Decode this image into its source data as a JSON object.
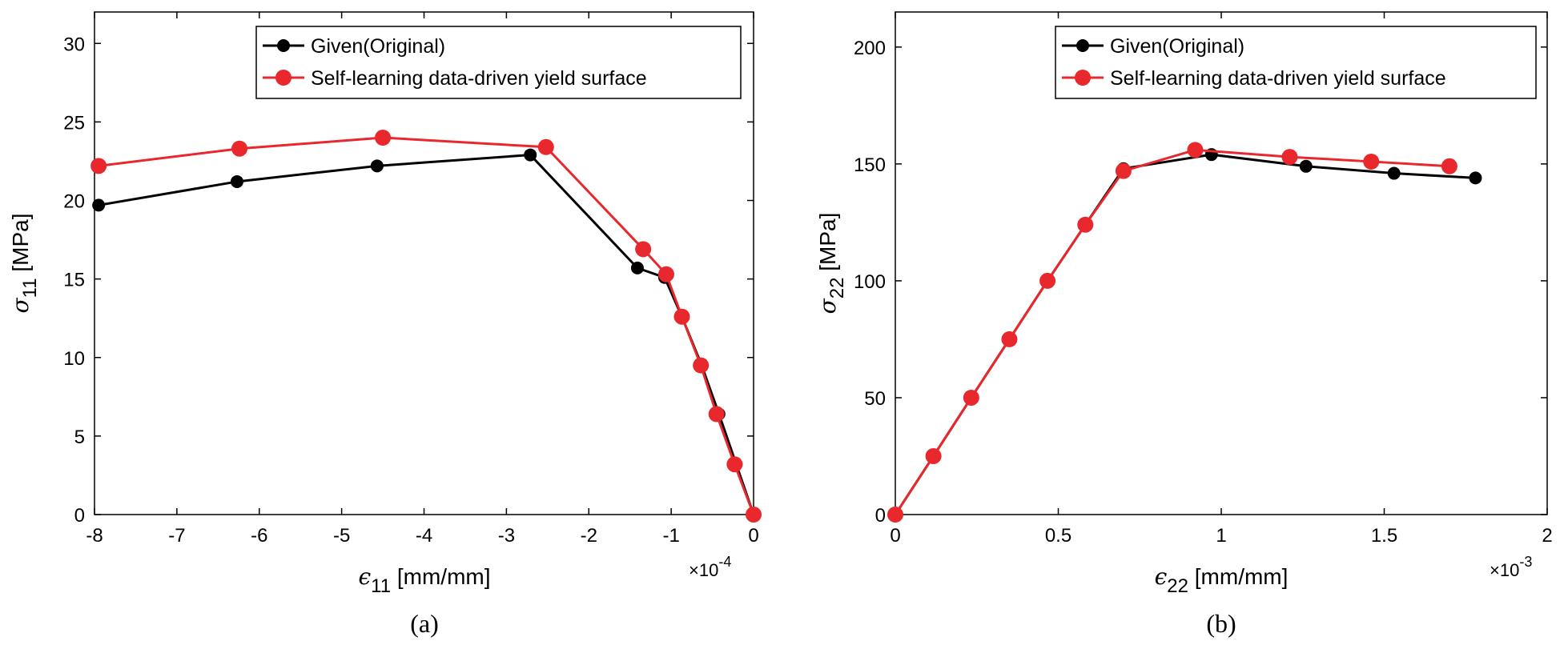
{
  "chart_data": [
    {
      "type": "line",
      "panel": "(a)",
      "caption": "(a)",
      "ylabel_sym": "σ",
      "ylabel_sub": "11",
      "ylabel_unit": " [MPa]",
      "xlabel_sym": "ϵ",
      "xlabel_sub": "11",
      "xlabel_unit": " [mm/mm]",
      "x_multiplier": "×10",
      "x_multiplier_exp": "-4",
      "xlim": [
        -8,
        0
      ],
      "ylim": [
        0,
        32
      ],
      "xticks": [
        -8,
        -7,
        -6,
        -5,
        -4,
        -3,
        -2,
        -1,
        0
      ],
      "xtick_labels": [
        "-8",
        "-7",
        "-6",
        "-5",
        "-4",
        "-3",
        "-2",
        "-1",
        "0"
      ],
      "yticks": [
        0,
        5,
        10,
        15,
        20,
        25,
        30
      ],
      "ytick_labels": [
        "0",
        "5",
        "10",
        "15",
        "20",
        "25",
        "30"
      ],
      "legend": [
        "Given(Original)",
        "Self-learning data-driven yield surface"
      ],
      "series": [
        {
          "name": "Given(Original)",
          "color": "#000000",
          "x": [
            -7.95,
            -6.27,
            -4.57,
            -2.71,
            -1.41,
            -1.08,
            -0.87,
            -0.63,
            -0.42,
            -0.21,
            0
          ],
          "y": [
            19.7,
            21.2,
            22.2,
            22.9,
            15.7,
            15.1,
            12.6,
            9.5,
            6.4,
            3.2,
            0
          ]
        },
        {
          "name": "Self-learning data-driven yield surface",
          "color": "#e8282c",
          "x": [
            -7.95,
            -6.24,
            -4.5,
            -2.52,
            -1.34,
            -1.06,
            -0.87,
            -0.64,
            -0.45,
            -0.23,
            0
          ],
          "y": [
            22.2,
            23.3,
            24.0,
            23.4,
            16.9,
            15.3,
            12.6,
            9.5,
            6.4,
            3.2,
            0
          ]
        }
      ]
    },
    {
      "type": "line",
      "panel": "(b)",
      "caption": "(b)",
      "ylabel_sym": "σ",
      "ylabel_sub": "22",
      "ylabel_unit": " [MPa]",
      "xlabel_sym": "ϵ",
      "xlabel_sub": "22",
      "xlabel_unit": " [mm/mm]",
      "x_multiplier": "×10",
      "x_multiplier_exp": "-3",
      "xlim": [
        0,
        2
      ],
      "ylim": [
        0,
        215
      ],
      "xticks": [
        0,
        0.5,
        1,
        1.5,
        2
      ],
      "xtick_labels": [
        "0",
        "0.5",
        "1",
        "1.5",
        "2"
      ],
      "yticks": [
        0,
        50,
        100,
        150,
        200
      ],
      "ytick_labels": [
        "0",
        "50",
        "100",
        "150",
        "200"
      ],
      "legend": [
        "Given(Original)",
        "Self-learning data-driven yield surface"
      ],
      "series": [
        {
          "name": "Given(Original)",
          "color": "#000000",
          "x": [
            0,
            0.117,
            0.233,
            0.35,
            0.467,
            0.583,
            0.7,
            0.97,
            1.26,
            1.53,
            1.78
          ],
          "y": [
            0,
            25,
            50,
            75,
            100,
            124,
            148,
            154,
            149,
            146,
            144
          ]
        },
        {
          "name": "Self-learning data-driven yield surface",
          "color": "#e8282c",
          "x": [
            0,
            0.117,
            0.233,
            0.35,
            0.467,
            0.583,
            0.7,
            0.92,
            1.21,
            1.46,
            1.7
          ],
          "y": [
            0,
            25,
            50,
            75,
            100,
            124,
            147,
            156,
            153,
            151,
            149
          ]
        }
      ]
    }
  ]
}
